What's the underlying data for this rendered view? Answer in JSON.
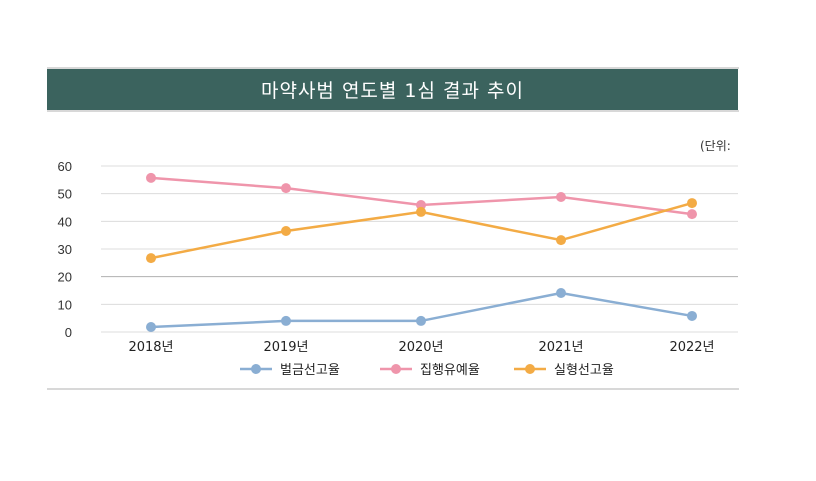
{
  "chart_data": {
    "type": "line",
    "title": "마약사범 연도별 1심 결과 추이",
    "unit_label": "(단위:",
    "categories": [
      "2018년",
      "2019년",
      "2020년",
      "2021년",
      "2022년"
    ],
    "ylim": [
      0,
      60
    ],
    "yticks": [
      0,
      10,
      20,
      30,
      40,
      50,
      60
    ],
    "grid": true,
    "legend_position": "bottom",
    "series": [
      {
        "name": "벌금선고율",
        "color": "#8aaed3",
        "values": [
          1.8,
          4.0,
          4.0,
          14.1,
          5.8
        ]
      },
      {
        "name": "집행유예율",
        "color": "#ef95ab",
        "values": [
          55.7,
          52.0,
          45.9,
          48.8,
          42.6
        ]
      },
      {
        "name": "실형선고율",
        "color": "#f3ab45",
        "values": [
          26.7,
          36.5,
          43.4,
          33.2,
          46.6
        ]
      }
    ]
  }
}
